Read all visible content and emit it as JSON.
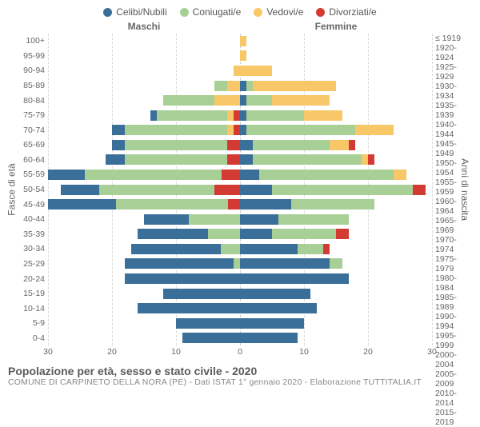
{
  "legend": [
    {
      "label": "Celibi/Nubili",
      "color": "#3a6f99"
    },
    {
      "label": "Coniugati/e",
      "color": "#a8cf95"
    },
    {
      "label": "Vedovi/e",
      "color": "#f8c767"
    },
    {
      "label": "Divorziati/e",
      "color": "#d23a33"
    }
  ],
  "headers": {
    "male": "Maschi",
    "female": "Femmine"
  },
  "y_axis_left_title": "Fasce di età",
  "y_axis_right_title": "Anni di nascita",
  "x_axis": {
    "max": 30,
    "ticks": [
      30,
      20,
      10,
      0,
      10,
      20,
      30
    ]
  },
  "colors": {
    "grid": "#d9dcdc",
    "zero": "#c8cccc",
    "background": "#ffffff",
    "text": "#666666"
  },
  "age_brackets": [
    "100+",
    "95-99",
    "90-94",
    "85-89",
    "80-84",
    "75-79",
    "70-74",
    "65-69",
    "60-64",
    "55-59",
    "50-54",
    "45-49",
    "40-44",
    "35-39",
    "30-34",
    "25-29",
    "20-24",
    "15-19",
    "10-14",
    "5-9",
    "0-4"
  ],
  "birth_years": [
    "≤ 1919",
    "1920-1924",
    "1925-1929",
    "1930-1934",
    "1935-1939",
    "1940-1944",
    "1945-1949",
    "1950-1954",
    "1955-1959",
    "1960-1964",
    "1965-1969",
    "1970-1974",
    "1975-1979",
    "1980-1984",
    "1985-1989",
    "1990-1994",
    "1995-1999",
    "2000-2004",
    "2005-2009",
    "2010-2014",
    "2015-2019"
  ],
  "rows": [
    {
      "m": [
        0,
        0,
        0,
        0
      ],
      "f": [
        0,
        0,
        1,
        0
      ]
    },
    {
      "m": [
        0,
        0,
        0,
        0
      ],
      "f": [
        0,
        0,
        1,
        0
      ]
    },
    {
      "m": [
        0,
        0,
        1,
        0
      ],
      "f": [
        0,
        0,
        5,
        0
      ]
    },
    {
      "m": [
        0,
        2,
        2,
        0
      ],
      "f": [
        1,
        1,
        13,
        0
      ]
    },
    {
      "m": [
        0,
        8,
        4,
        0
      ],
      "f": [
        1,
        4,
        9,
        0
      ]
    },
    {
      "m": [
        1,
        11,
        1,
        1
      ],
      "f": [
        1,
        9,
        6,
        0
      ]
    },
    {
      "m": [
        2,
        16,
        1,
        1
      ],
      "f": [
        1,
        17,
        6,
        0
      ]
    },
    {
      "m": [
        2,
        16,
        0,
        2
      ],
      "f": [
        2,
        12,
        3,
        1
      ]
    },
    {
      "m": [
        3,
        16,
        0,
        2
      ],
      "f": [
        2,
        17,
        1,
        1
      ]
    },
    {
      "m": [
        6,
        22,
        0,
        3
      ],
      "f": [
        3,
        21,
        2,
        0
      ]
    },
    {
      "m": [
        6,
        18,
        0,
        4
      ],
      "f": [
        5,
        22,
        0,
        2
      ]
    },
    {
      "m": [
        11,
        18,
        0,
        2
      ],
      "f": [
        8,
        13,
        0,
        0
      ]
    },
    {
      "m": [
        7,
        8,
        0,
        0
      ],
      "f": [
        6,
        11,
        0,
        0
      ]
    },
    {
      "m": [
        11,
        5,
        0,
        0
      ],
      "f": [
        5,
        10,
        0,
        2
      ]
    },
    {
      "m": [
        14,
        3,
        0,
        0
      ],
      "f": [
        9,
        4,
        0,
        1
      ]
    },
    {
      "m": [
        17,
        1,
        0,
        0
      ],
      "f": [
        14,
        2,
        0,
        0
      ]
    },
    {
      "m": [
        18,
        0,
        0,
        0
      ],
      "f": [
        17,
        0,
        0,
        0
      ]
    },
    {
      "m": [
        12,
        0,
        0,
        0
      ],
      "f": [
        11,
        0,
        0,
        0
      ]
    },
    {
      "m": [
        16,
        0,
        0,
        0
      ],
      "f": [
        12,
        0,
        0,
        0
      ]
    },
    {
      "m": [
        10,
        0,
        0,
        0
      ],
      "f": [
        10,
        0,
        0,
        0
      ]
    },
    {
      "m": [
        9,
        0,
        0,
        0
      ],
      "f": [
        9,
        0,
        0,
        0
      ]
    }
  ],
  "title": "Popolazione per età, sesso e stato civile - 2020",
  "subtitle": "COMUNE DI CARPINETO DELLA NORA (PE) - Dati ISTAT 1° gennaio 2020 - Elaborazione TUTTITALIA.IT"
}
